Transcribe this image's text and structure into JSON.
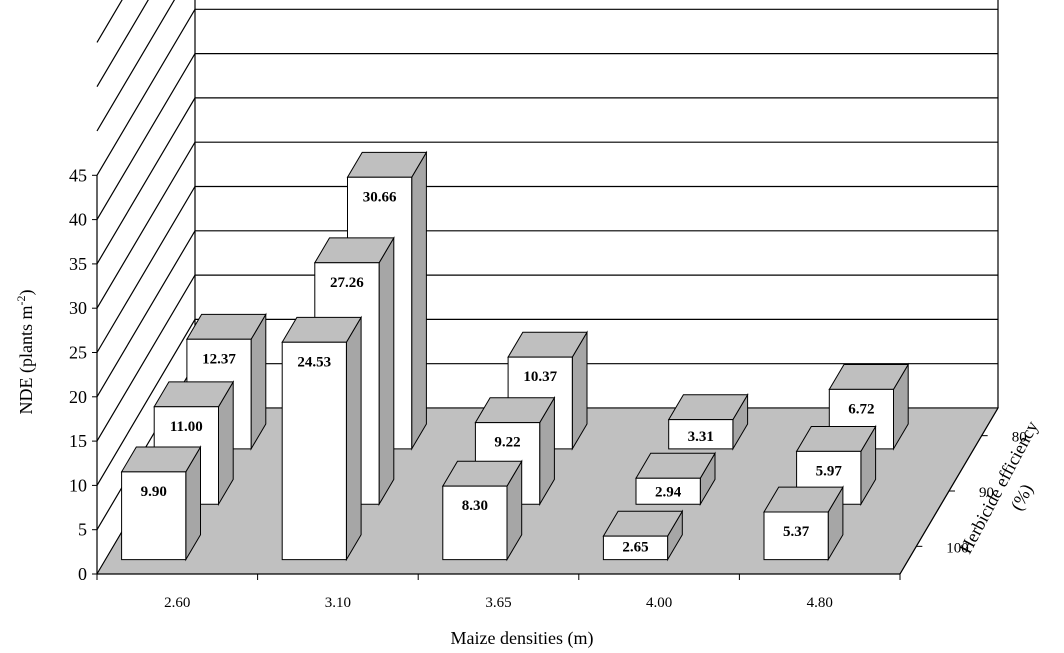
{
  "chart_data": {
    "type": "bar",
    "variant": "3d-column",
    "title": "",
    "xlabel": "Maize densities (m)",
    "ylabel_main": "NDE (plants m",
    "ylabel_sup": "-2",
    "ylabel_end": ")",
    "zlabel_line1": "Herbicide efficiency",
    "zlabel_line2": "(%)",
    "ylim": [
      0,
      45
    ],
    "yticks": [
      "0",
      "5",
      "10",
      "15",
      "20",
      "25",
      "30",
      "35",
      "40",
      "45"
    ],
    "categories": [
      "2.60",
      "3.10",
      "3.65",
      "4.00",
      "4.80"
    ],
    "series": [
      {
        "name": "100",
        "values": [
          9.9,
          24.53,
          8.3,
          2.65,
          5.37
        ],
        "labels": [
          "9.90",
          "24.53",
          "8.30",
          "2.65",
          "5.37"
        ]
      },
      {
        "name": "90",
        "values": [
          11.0,
          27.26,
          9.22,
          2.94,
          5.97
        ],
        "labels": [
          "11.00",
          "27.26",
          "9.22",
          "2.94",
          "5.97"
        ]
      },
      {
        "name": "80",
        "values": [
          12.37,
          30.66,
          10.37,
          3.31,
          6.72
        ],
        "labels": [
          "12.37",
          "30.66",
          "10.37",
          "3.31",
          "6.72"
        ]
      }
    ],
    "colors": {
      "bar_front": "#ffffff",
      "bar_side": "#a6a6a6",
      "bar_top": "#bfbfbf",
      "floor": "#c0c0c0",
      "line": "#000000"
    },
    "grid": true
  }
}
